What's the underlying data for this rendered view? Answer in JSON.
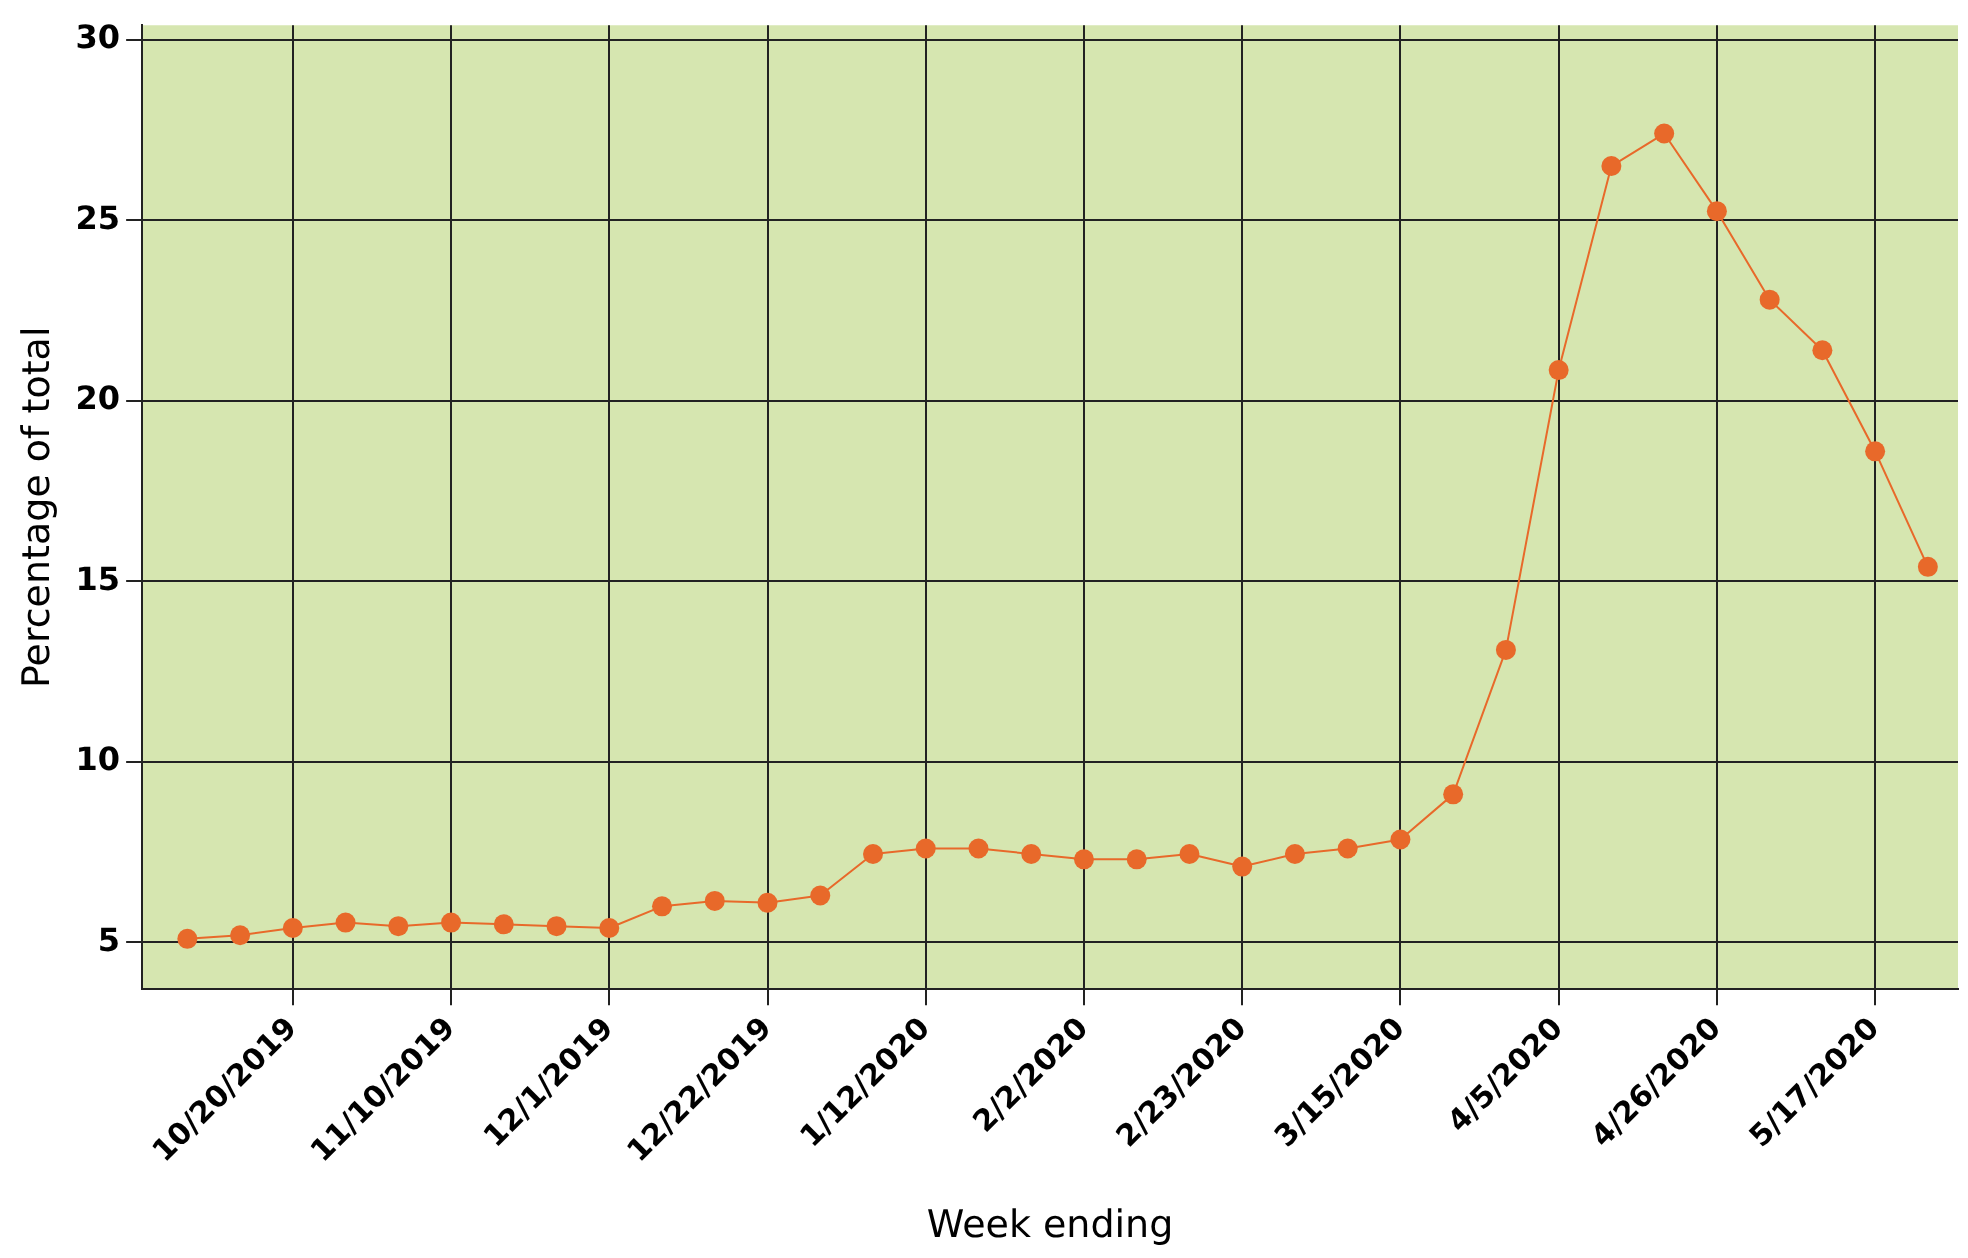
{
  "chart_data": {
    "type": "line",
    "xlabel": "Week ending",
    "ylabel": "Percentage of total",
    "x": [
      "2019-10-06",
      "2019-10-13",
      "2019-10-20",
      "2019-10-27",
      "2019-11-03",
      "2019-11-10",
      "2019-11-17",
      "2019-11-24",
      "2019-12-01",
      "2019-12-08",
      "2019-12-15",
      "2019-12-22",
      "2019-12-29",
      "2020-01-05",
      "2020-01-12",
      "2020-01-19",
      "2020-01-26",
      "2020-02-02",
      "2020-02-09",
      "2020-02-16",
      "2020-02-23",
      "2020-03-01",
      "2020-03-08",
      "2020-03-15",
      "2020-03-22",
      "2020-03-29",
      "2020-04-05",
      "2020-04-12",
      "2020-04-19",
      "2020-04-26",
      "2020-05-03",
      "2020-05-10",
      "2020-05-17",
      "2020-05-24"
    ],
    "series": [
      {
        "color": "#e8692a",
        "values": [
          5.1,
          5.2,
          5.4,
          5.55,
          5.45,
          5.55,
          5.5,
          5.45,
          5.4,
          6.0,
          6.15,
          6.1,
          6.3,
          7.45,
          7.6,
          7.6,
          7.45,
          7.3,
          7.3,
          7.45,
          7.1,
          7.45,
          7.6,
          7.85,
          9.1,
          13.1,
          20.85,
          26.5,
          27.4,
          25.25,
          22.8,
          21.4,
          18.6,
          15.4
        ]
      }
    ],
    "xlim": [
      "2019-09-30",
      "2020-05-28"
    ],
    "xticks": [
      {
        "value": "2019-10-20",
        "label": "10/20/2019"
      },
      {
        "value": "2019-11-10",
        "label": "11/10/2019"
      },
      {
        "value": "2019-12-01",
        "label": "12/1/2019"
      },
      {
        "value": "2019-12-22",
        "label": "12/22/2019"
      },
      {
        "value": "2020-01-12",
        "label": "1/12/2020"
      },
      {
        "value": "2020-02-02",
        "label": "2/2/2020"
      },
      {
        "value": "2020-02-23",
        "label": "2/23/2020"
      },
      {
        "value": "2020-03-15",
        "label": "3/15/2020"
      },
      {
        "value": "2020-04-05",
        "label": "4/5/2020"
      },
      {
        "value": "2020-04-26",
        "label": "4/26/2020"
      },
      {
        "value": "2020-05-17",
        "label": "5/17/2020"
      }
    ],
    "ylim": [
      3.7,
      30.4
    ],
    "yticks": [
      5,
      10,
      15,
      20,
      25,
      30
    ],
    "grid": true,
    "legend": false,
    "marker": "circle",
    "line_style": "solid"
  }
}
